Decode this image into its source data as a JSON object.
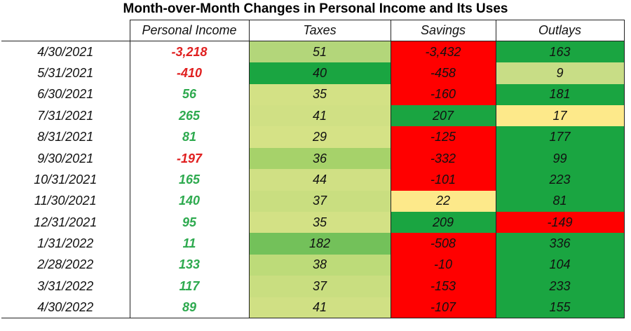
{
  "chart_data": {
    "type": "table",
    "title": "Month-over-Month Changes in Personal Income and Its Uses",
    "columns": [
      "",
      "Personal Income",
      "Taxes",
      "Savings",
      "Outlays"
    ],
    "rows": [
      {
        "date": "4/30/2021",
        "personal_income": "-3,218",
        "taxes": "51",
        "savings": "-3,432",
        "outlays": "163"
      },
      {
        "date": "5/31/2021",
        "personal_income": "-410",
        "taxes": "40",
        "savings": "-458",
        "outlays": "9"
      },
      {
        "date": "6/30/2021",
        "personal_income": "56",
        "taxes": "35",
        "savings": "-160",
        "outlays": "181"
      },
      {
        "date": "7/31/2021",
        "personal_income": "265",
        "taxes": "41",
        "savings": "207",
        "outlays": "17"
      },
      {
        "date": "8/31/2021",
        "personal_income": "81",
        "taxes": "29",
        "savings": "-125",
        "outlays": "177"
      },
      {
        "date": "9/30/2021",
        "personal_income": "-197",
        "taxes": "36",
        "savings": "-332",
        "outlays": "99"
      },
      {
        "date": "10/31/2021",
        "personal_income": "165",
        "taxes": "44",
        "savings": "-101",
        "outlays": "223"
      },
      {
        "date": "11/30/2021",
        "personal_income": "140",
        "taxes": "37",
        "savings": "22",
        "outlays": "81"
      },
      {
        "date": "12/31/2021",
        "personal_income": "95",
        "taxes": "35",
        "savings": "209",
        "outlays": "-149"
      },
      {
        "date": "1/31/2022",
        "personal_income": "11",
        "taxes": "182",
        "savings": "-508",
        "outlays": "336"
      },
      {
        "date": "2/28/2022",
        "personal_income": "133",
        "taxes": "38",
        "savings": "-10",
        "outlays": "104"
      },
      {
        "date": "3/31/2022",
        "personal_income": "117",
        "taxes": "37",
        "savings": "-153",
        "outlays": "233"
      },
      {
        "date": "4/30/2022",
        "personal_income": "89",
        "taxes": "41",
        "savings": "-107",
        "outlays": "155"
      }
    ],
    "cell_colors": {
      "taxes": [
        "#b3d67a",
        "#1aa541",
        "#d3e185",
        "#d0e084",
        "#d5e286",
        "#a6d26a",
        "#d0e084",
        "#c9de80",
        "#d3e185",
        "#73c15a",
        "#bddb79",
        "#c9de80",
        "#d0e084"
      ],
      "savings": [
        "#ff0000",
        "#ff0000",
        "#ff0000",
        "#1aa541",
        "#ff0000",
        "#ff0000",
        "#ff0000",
        "#fde98a",
        "#1aa541",
        "#ff0000",
        "#ff0000",
        "#ff0000",
        "#ff0000"
      ],
      "outlays": [
        "#1aa541",
        "#c8dd86",
        "#1aa541",
        "#fde98a",
        "#1aa541",
        "#1aa541",
        "#1aa541",
        "#1aa541",
        "#ff0000",
        "#1aa541",
        "#1aa541",
        "#1aa541",
        "#1aa541"
      ]
    },
    "text_colors": {
      "positive": "#2eaa4f",
      "negative": "#e02020"
    }
  }
}
